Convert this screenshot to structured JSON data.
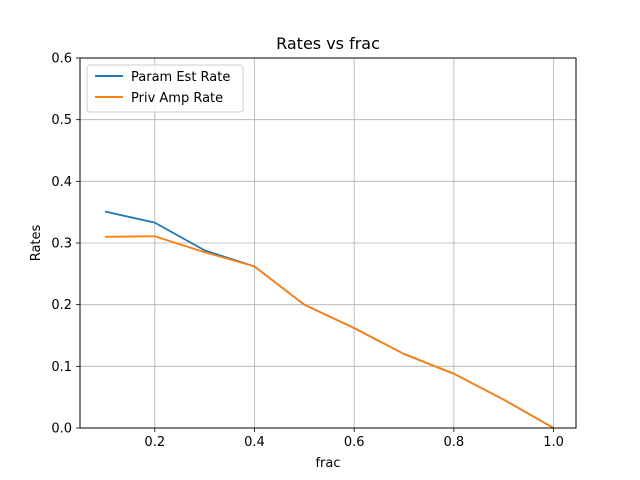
{
  "chart_data": {
    "type": "line",
    "title": "Rates vs frac",
    "xlabel": "frac",
    "ylabel": "Rates",
    "xlim": [
      0.05,
      1.045
    ],
    "ylim": [
      0.0,
      0.6
    ],
    "xticks": [
      0.2,
      0.4,
      0.6,
      0.8,
      1.0
    ],
    "xtick_labels": [
      "0.2",
      "0.4",
      "0.6",
      "0.8",
      "1.0"
    ],
    "yticks": [
      0.0,
      0.1,
      0.2,
      0.3,
      0.4,
      0.5,
      0.6
    ],
    "ytick_labels": [
      "0.0",
      "0.1",
      "0.2",
      "0.3",
      "0.4",
      "0.5",
      "0.6"
    ],
    "grid": true,
    "legend_position": "upper-left",
    "x": [
      0.1,
      0.2,
      0.3,
      0.4,
      0.5,
      0.6,
      0.7,
      0.8,
      0.9,
      1.0
    ],
    "series": [
      {
        "name": "Param Est Rate",
        "color": "#1f77b4",
        "values": [
          0.351,
          0.333,
          0.288,
          0.262,
          0.2,
          0.162,
          0.12,
          0.088,
          0.046,
          0.0
        ]
      },
      {
        "name": "Priv Amp Rate",
        "color": "#ff7f0e",
        "values": [
          0.31,
          0.311,
          0.285,
          0.262,
          0.2,
          0.162,
          0.12,
          0.088,
          0.046,
          0.0
        ]
      }
    ]
  }
}
